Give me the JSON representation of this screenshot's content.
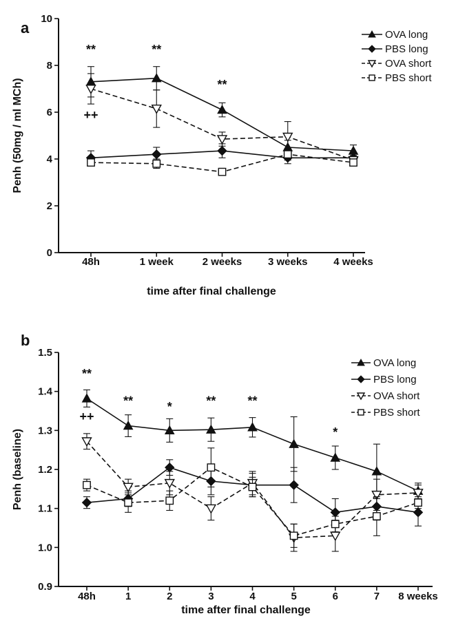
{
  "chart_data": [
    {
      "panel_label": "a",
      "type": "line",
      "categories": [
        "48h",
        "1 week",
        "2 weeks",
        "3 weeks",
        "4 weeks"
      ],
      "xlabel": "time after final challenge",
      "ylabel": "Penh (50mg / ml MCh)",
      "ylim": [
        0,
        10
      ],
      "yticks": [
        "0",
        "2",
        "4",
        "6",
        "8",
        "10"
      ],
      "grid": false,
      "legend_position": "top-right",
      "series": [
        {
          "name": "OVA long",
          "marker": "triangle",
          "dash": "solid",
          "values": [
            7.3,
            7.45,
            6.1,
            4.5,
            4.35
          ],
          "errors": [
            0.65,
            0.5,
            0.3,
            0.3,
            0.25
          ]
        },
        {
          "name": "PBS long",
          "marker": "diamond",
          "dash": "solid",
          "values": [
            4.05,
            4.2,
            4.35,
            4.05,
            4.05
          ],
          "errors": [
            0.3,
            0.3,
            0.3,
            0.25,
            0.2
          ]
        },
        {
          "name": "OVA short",
          "marker": "triangle-down-open",
          "dash": "dashed",
          "values": [
            7.0,
            6.15,
            4.85,
            4.95,
            3.95
          ],
          "errors": [
            0.65,
            0.8,
            0.3,
            0.65,
            0.2
          ]
        },
        {
          "name": "PBS short",
          "marker": "square-open",
          "dash": "dashed",
          "values": [
            3.85,
            3.8,
            3.45,
            4.2,
            3.85
          ],
          "errors": [
            0.15,
            0.2,
            0.15,
            0.25,
            0.15
          ]
        }
      ],
      "annotations": [
        {
          "text": "**",
          "category": "48h",
          "y": 8.5
        },
        {
          "text": "**",
          "category": "1 week",
          "y": 8.5
        },
        {
          "text": "**",
          "category": "2 weeks",
          "y": 7.0
        },
        {
          "text": "++",
          "category": "48h",
          "y": 5.7
        }
      ]
    },
    {
      "panel_label": "b",
      "type": "line",
      "categories": [
        "48h",
        "1",
        "2",
        "3",
        "4",
        "5",
        "6",
        "7",
        "8 weeks"
      ],
      "xlabel": "time after final challenge",
      "ylabel": "Penh (baseline)",
      "ylim": [
        0.9,
        1.5
      ],
      "yticks": [
        "0.9",
        "1.0",
        "1.1",
        "1.2",
        "1.3",
        "1.4",
        "1.5"
      ],
      "grid": false,
      "legend_position": "top-right",
      "series": [
        {
          "name": "OVA long",
          "marker": "triangle",
          "dash": "solid",
          "values": [
            1.382,
            1.312,
            1.3,
            1.302,
            1.308,
            1.265,
            1.23,
            1.195,
            1.145
          ],
          "errors": [
            0.022,
            0.028,
            0.03,
            0.03,
            0.025,
            0.07,
            0.03,
            0.07,
            0.02
          ]
        },
        {
          "name": "PBS long",
          "marker": "diamond",
          "dash": "solid",
          "values": [
            1.115,
            1.125,
            1.205,
            1.17,
            1.16,
            1.16,
            1.09,
            1.105,
            1.09
          ],
          "errors": [
            0.015,
            0.02,
            0.02,
            0.035,
            0.03,
            0.045,
            0.035,
            0.035,
            0.035
          ]
        },
        {
          "name": "OVA short",
          "marker": "triangle-down-open",
          "dash": "dashed",
          "values": [
            1.272,
            1.155,
            1.165,
            1.1,
            1.165,
            1.025,
            1.03,
            1.135,
            1.14
          ],
          "errors": [
            0.02,
            0.02,
            0.03,
            0.03,
            0.03,
            0.035,
            0.04,
            0.04,
            0.02
          ]
        },
        {
          "name": "PBS short",
          "marker": "square-open",
          "dash": "dashed",
          "values": [
            1.16,
            1.115,
            1.12,
            1.205,
            1.155,
            1.03,
            1.06,
            1.08,
            1.115
          ],
          "errors": [
            0.015,
            0.025,
            0.025,
            0.05,
            0.025,
            0.03,
            0.02,
            0.05,
            0.015
          ]
        }
      ],
      "annotations": [
        {
          "text": "**",
          "category": "48h",
          "y": 1.435
        },
        {
          "text": "**",
          "category": "1",
          "y": 1.365
        },
        {
          "text": "*",
          "category": "2",
          "y": 1.35
        },
        {
          "text": "**",
          "category": "3",
          "y": 1.365
        },
        {
          "text": "**",
          "category": "4",
          "y": 1.365
        },
        {
          "text": "*",
          "category": "6",
          "y": 1.285
        },
        {
          "text": "++",
          "category": "48h",
          "y": 1.325
        }
      ]
    }
  ]
}
